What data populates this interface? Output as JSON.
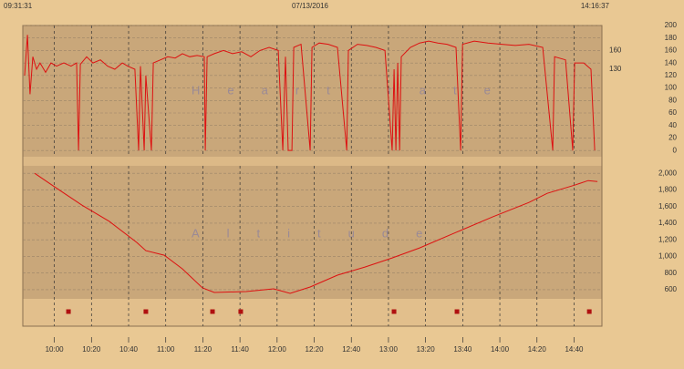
{
  "header": {
    "left": "09:31:31",
    "center": "07/13/2016",
    "right": "14:16:37"
  },
  "chart_data": [
    {
      "type": "line",
      "title": "Heart rate",
      "xlim": [
        43,
        355
      ],
      "ylim": [
        -10,
        200
      ],
      "yticks": [
        0,
        20,
        40,
        60,
        80,
        100,
        120,
        140,
        160,
        180,
        200
      ],
      "grid": true,
      "annotations": [
        {
          "text": "160",
          "value": 160
        },
        {
          "text": "130",
          "value": 130
        }
      ],
      "series": [
        {
          "name": "Heart rate",
          "color": "#dd1111",
          "x": [
            44.0,
            45.5,
            46.9,
            48.4,
            50.4,
            52.3,
            55.3,
            58.2,
            61.2,
            65.1,
            69.0,
            72.0,
            73.0,
            74.0,
            77.4,
            80.8,
            84.8,
            88.7,
            92.6,
            96.6,
            99.5,
            103.4,
            105.4,
            106.4,
            108.4,
            109.3,
            112.3,
            113.3,
            117.2,
            121.1,
            125.1,
            129.0,
            132.9,
            136.9,
            140.8,
            141.3,
            142.3,
            146.2,
            151.1,
            156.0,
            160.9,
            165.9,
            170.8,
            175.7,
            180.6,
            183.1,
            184.5,
            186.0,
            188.0,
            189.0,
            192.9,
            197.8,
            198.8,
            202.7,
            207.6,
            212.5,
            217.5,
            218.4,
            223.3,
            228.3,
            233.2,
            238.1,
            242.0,
            243.0,
            244.0,
            245.0,
            246.0,
            246.9,
            251.8,
            256.8,
            261.7,
            266.6,
            271.5,
            276.4,
            278.9,
            279.9,
            286.2,
            293.6,
            301.0,
            308.3,
            315.7,
            323.1,
            328.5,
            329.5,
            335.4,
            339.3,
            340.3,
            345.2,
            349.1,
            351.1
          ],
          "values": [
            120,
            185,
            90,
            150,
            130,
            140,
            125,
            140,
            135,
            140,
            135,
            140,
            0,
            138,
            150,
            140,
            145,
            135,
            130,
            140,
            135,
            130,
            0,
            135,
            0,
            120,
            0,
            140,
            145,
            150,
            148,
            155,
            150,
            152,
            150,
            0,
            150,
            155,
            160,
            155,
            158,
            150,
            160,
            165,
            160,
            0,
            150,
            0,
            0,
            165,
            170,
            0,
            165,
            172,
            170,
            165,
            0,
            160,
            170,
            168,
            165,
            160,
            0,
            130,
            0,
            140,
            0,
            150,
            165,
            172,
            175,
            172,
            170,
            165,
            0,
            170,
            175,
            172,
            170,
            168,
            170,
            165,
            0,
            150,
            145,
            0,
            140,
            140,
            130,
            0
          ]
        }
      ]
    },
    {
      "type": "line",
      "title": "Altitude",
      "xlim": [
        43,
        355
      ],
      "ylim": [
        490,
        2090
      ],
      "yticks": [
        {
          "value": 2000,
          "label": "2,000"
        },
        {
          "value": 1800,
          "label": "1,800"
        },
        {
          "value": 1600,
          "label": "1,600"
        },
        {
          "value": 1400,
          "label": "1,400"
        },
        {
          "value": 1200,
          "label": "1,200"
        },
        {
          "value": 1000,
          "label": "1,000"
        },
        800,
        600
      ],
      "xticks": [
        {
          "value": 60,
          "label": "10:00"
        },
        {
          "value": 80,
          "label": "10:20"
        },
        {
          "value": 100,
          "label": "10:40"
        },
        {
          "value": 120,
          "label": "11:00"
        },
        {
          "value": 140,
          "label": "11:20"
        },
        {
          "value": 160,
          "label": "11:40"
        },
        {
          "value": 180,
          "label": "12:00"
        },
        {
          "value": 200,
          "label": "12:20"
        },
        {
          "value": 220,
          "label": "12:40"
        },
        {
          "value": 240,
          "label": "13:00"
        },
        {
          "value": 260,
          "label": "13:20"
        },
        {
          "value": 280,
          "label": "13:40"
        },
        {
          "value": 300,
          "label": "14:00"
        },
        {
          "value": 320,
          "label": "14:20"
        },
        {
          "value": 340,
          "label": "14:40"
        }
      ],
      "grid": true,
      "laps": [
        67.6,
        109.3,
        145.2,
        160.4,
        243.0,
        276.9,
        348.2
      ],
      "lap_color": "#b01010",
      "series": [
        {
          "name": "Altitude",
          "color": "#dd1111",
          "x": [
            49.4,
            60.2,
            74.9,
            89.7,
            104.4,
            109.3,
            119.2,
            129.0,
            139.8,
            146.2,
            163.4,
            178.1,
            187.0,
            197.8,
            212.5,
            227.3,
            242.0,
            256.8,
            276.4,
            296.1,
            315.7,
            325.5,
            340.3,
            347.6,
            352.6
          ],
          "values": [
            2000,
            1836,
            1617,
            1420,
            1168,
            1070,
            1015,
            851,
            621,
            567,
            578,
            611,
            556,
            632,
            775,
            873,
            982,
            1103,
            1289,
            1475,
            1650,
            1759,
            1858,
            1912,
            1902
          ]
        }
      ]
    }
  ]
}
